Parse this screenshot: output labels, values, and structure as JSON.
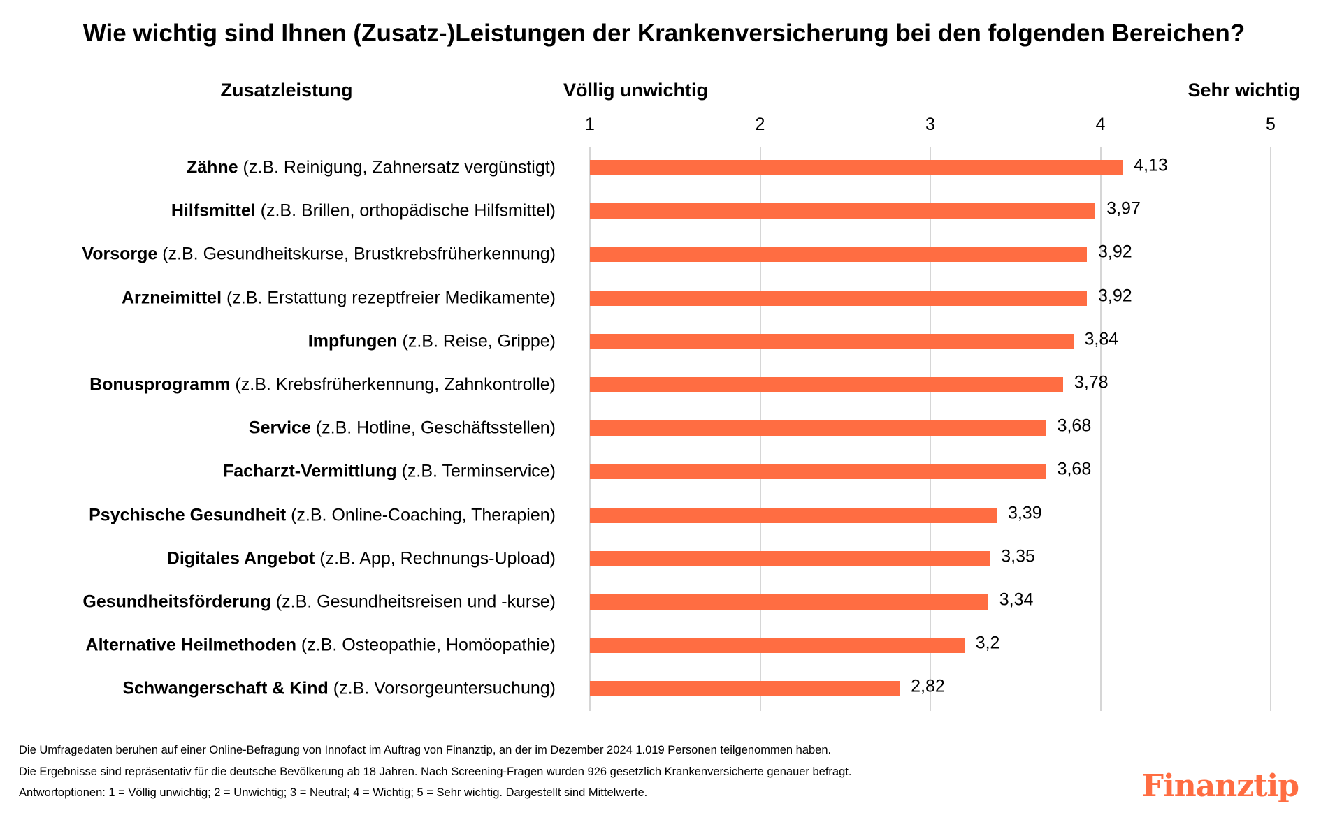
{
  "chart_data": {
    "type": "bar",
    "orientation": "horizontal",
    "title": "Wie wichtig sind Ihnen (Zusatz-)Leistungen der Krankenversicherung bei den folgenden Bereichen?",
    "category_header": "Zusatzleistung",
    "scale_left_label": "Völlig unwichtig",
    "scale_right_label": "Sehr wichtig",
    "xlim": [
      1,
      5
    ],
    "ticks": [
      "1",
      "2",
      "3",
      "4",
      "5"
    ],
    "grid": true,
    "bar_color": "#FF6D42",
    "categories": [
      {
        "bold": "Zähne",
        "detail": " (z.B. Reinigung, Zahnersatz vergünstigt)"
      },
      {
        "bold": "Hilfsmittel",
        "detail": " (z.B. Brillen, orthopädische Hilfsmittel)"
      },
      {
        "bold": "Vorsorge",
        "detail": " (z.B. Gesundheitskurse, Brustkrebsfrüherkennung)"
      },
      {
        "bold": "Arzneimittel",
        "detail": " (z.B. Erstattung rezeptfreier Medikamente)"
      },
      {
        "bold": "Impfungen",
        "detail": " (z.B. Reise, Grippe)"
      },
      {
        "bold": "Bonusprogramm",
        "detail": " (z.B. Krebsfrüherkennung, Zahnkontrolle)"
      },
      {
        "bold": "Service",
        "detail": " (z.B. Hotline, Geschäftsstellen)"
      },
      {
        "bold": "Facharzt-Vermittlung",
        "detail": " (z.B. Terminservice)"
      },
      {
        "bold": "Psychische Gesundheit",
        "detail": " (z.B. Online-Coaching, Therapien)"
      },
      {
        "bold": "Digitales Angebot",
        "detail": " (z.B. App, Rechnungs-Upload)"
      },
      {
        "bold": "Gesundheitsförderung",
        "detail": " (z.B. Gesundheitsreisen und -kurse)"
      },
      {
        "bold": "Alternative Heilmethoden",
        "detail": " (z.B. Osteopathie, Homöopathie)"
      },
      {
        "bold": "Schwangerschaft & Kind",
        "detail": " (z.B. Vorsorgeuntersuchung)"
      }
    ],
    "values": [
      4.13,
      3.97,
      3.92,
      3.92,
      3.84,
      3.78,
      3.68,
      3.68,
      3.39,
      3.35,
      3.34,
      3.2,
      2.82
    ],
    "value_labels": [
      "4,13",
      "3,97",
      "3,92",
      "3,92",
      "3,84",
      "3,78",
      "3,68",
      "3,68",
      "3,39",
      "3,35",
      "3,34",
      "3,2",
      "2,82"
    ]
  },
  "footnotes": [
    "Die Umfragedaten beruhen auf einer Online-Befragung von Innofact im Auftrag von Finanztip, an der im Dezember 2024 1.019 Personen teilgenommen haben.",
    "Die Ergebnisse sind repräsentativ für die deutsche Bevölkerung ab 18 Jahren. Nach Screening-Fragen wurden 926 gesetzlich Krankenversicherte genauer befragt.",
    "Antwortoptionen: 1 = Völlig unwichtig; 2 = Unwichtig; 3 = Neutral; 4 = Wichtig; 5 = Sehr wichtig. Dargestellt sind Mittelwerte."
  ],
  "logo": {
    "text": "Finanztip",
    "color": "#FF6D42"
  }
}
